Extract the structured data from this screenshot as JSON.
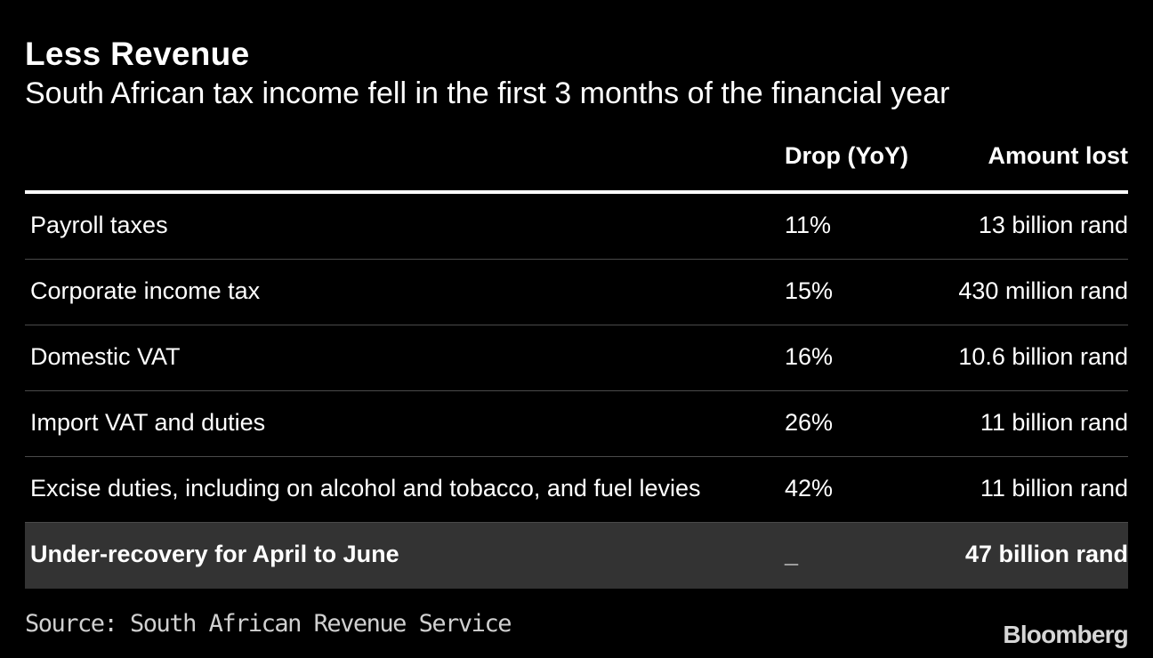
{
  "chart_data": {
    "type": "table",
    "title": "Less Revenue",
    "subtitle": "South African tax income fell in the first 3 months of the financial year",
    "columns": [
      "",
      "Drop (YoY)",
      "Amount lost"
    ],
    "rows": [
      {
        "category": "Payroll taxes",
        "drop": "11%",
        "amount": "13 billion rand"
      },
      {
        "category": "Corporate income tax",
        "drop": "15%",
        "amount": "430 million rand"
      },
      {
        "category": "Domestic VAT",
        "drop": "16%",
        "amount": "10.6 billion rand"
      },
      {
        "category": "Import VAT and duties",
        "drop": "26%",
        "amount": "11 billion rand"
      },
      {
        "category": "Excise duties, including on alcohol and tobacco, and fuel levies",
        "drop": "42%",
        "amount": "11 billion rand"
      }
    ],
    "total": {
      "category": "Under-recovery for April to June",
      "drop": "_",
      "amount": "47 billion rand"
    },
    "source": "Source: South African Revenue Service"
  },
  "branding": {
    "logo": "Bloomberg"
  },
  "colors": {
    "background": "#000000",
    "text": "#ffffff",
    "total_row": "#333333",
    "divider": "#4a4a4a"
  }
}
